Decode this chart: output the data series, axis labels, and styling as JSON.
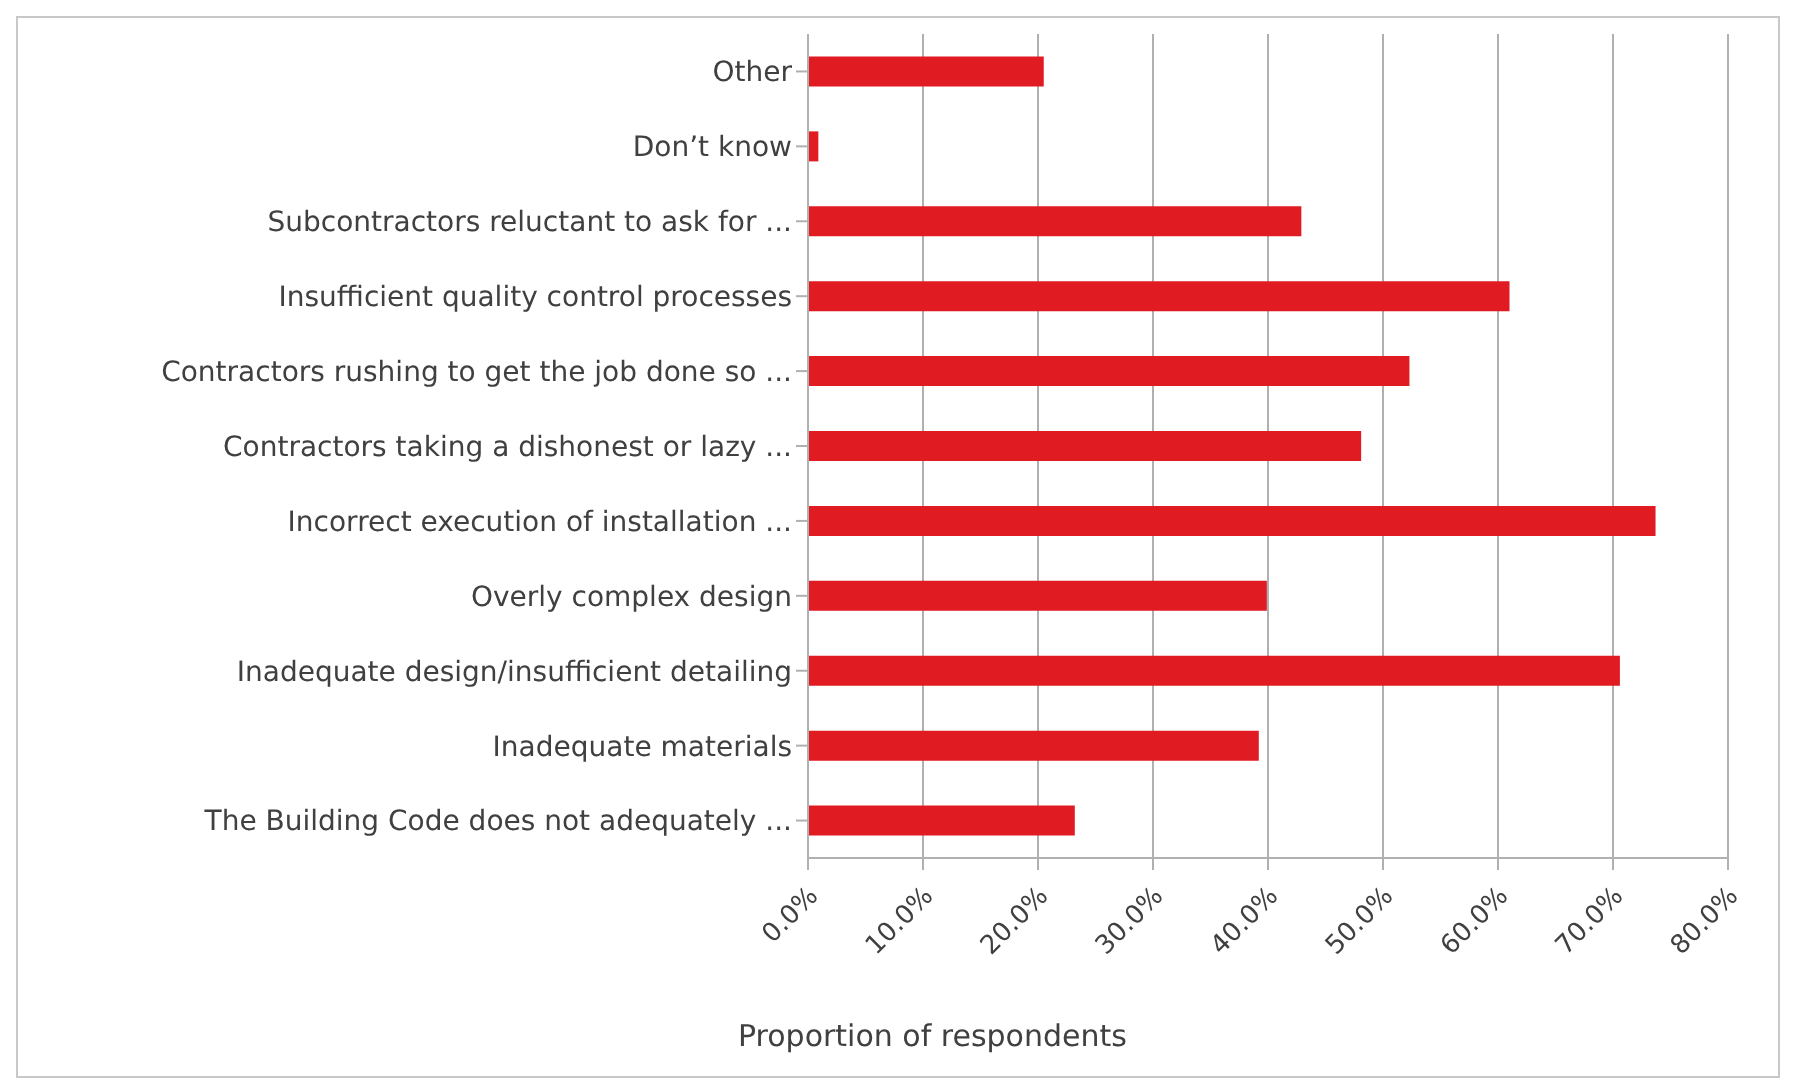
{
  "chart_data": {
    "type": "bar",
    "orientation": "horizontal",
    "xlabel": "Proportion of respondents",
    "categories": [
      "Other",
      "Don’t know",
      "Subcontractors reluctant to ask for ...",
      "Insufficient quality control processes",
      "Contractors rushing to get the job done so ...",
      "Contractors taking a dishonest or lazy ...",
      "Incorrect execution of installation ...",
      "Overly complex design",
      "Inadequate design/insufficient detailing",
      "Inadequate materials",
      "The Building Code does not adequately ..."
    ],
    "values": [
      20.5,
      0.9,
      42.9,
      61.0,
      52.3,
      48.1,
      73.7,
      39.9,
      70.6,
      39.2,
      23.2
    ],
    "color": "#e11b22",
    "xlim": [
      0,
      80
    ],
    "xticks": [
      {
        "value": 0,
        "label": "0.0%"
      },
      {
        "value": 10,
        "label": "10.0%"
      },
      {
        "value": 20,
        "label": "20.0%"
      },
      {
        "value": 30,
        "label": "30.0%"
      },
      {
        "value": 40,
        "label": "40.0%"
      },
      {
        "value": 50,
        "label": "50.0%"
      },
      {
        "value": 60,
        "label": "60.0%"
      },
      {
        "value": 70,
        "label": "70.0%"
      },
      {
        "value": 80,
        "label": "80.0%"
      }
    ],
    "grid": "x",
    "legend": false
  }
}
